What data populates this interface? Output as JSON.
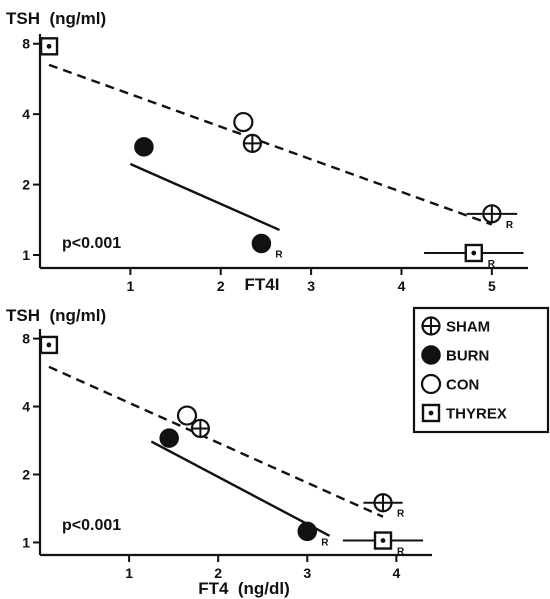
{
  "chart_data": [
    {
      "type": "scatter",
      "ylabel": "TSH  (ng/ml)",
      "xlabel": "FT4I",
      "annotation": "p<0.001",
      "xlim": [
        0,
        5.4
      ],
      "ylim": [
        0.88,
        8.3
      ],
      "y_scale": "log",
      "xticks": [
        1,
        2,
        3,
        4,
        5
      ],
      "yticks": [
        1,
        2,
        4,
        8
      ],
      "series": [
        {
          "name": "SHAM",
          "marker": "circle-cross",
          "points": [
            {
              "x": 2.35,
              "y": 3.0
            },
            {
              "x": 5.0,
              "y": 1.5,
              "xerr": 0.28,
              "r": true
            }
          ]
        },
        {
          "name": "BURN",
          "marker": "filled-circle",
          "points": [
            {
              "x": 1.15,
              "y": 2.9
            },
            {
              "x": 2.45,
              "y": 1.12,
              "r": true
            }
          ]
        },
        {
          "name": "CON",
          "marker": "open-circle",
          "points": [
            {
              "x": 2.25,
              "y": 3.7
            }
          ]
        },
        {
          "name": "THYREX",
          "marker": "dotted-square",
          "points": [
            {
              "x": 0.1,
              "y": 7.8
            },
            {
              "x": 4.8,
              "y": 1.02,
              "xerr": 0.55,
              "r": true
            }
          ]
        }
      ],
      "fit_lines": [
        {
          "style": "dashed",
          "from": [
            0.1,
            6.5
          ],
          "to": [
            5.0,
            1.35
          ]
        },
        {
          "style": "solid",
          "from": [
            1.0,
            2.45
          ],
          "to": [
            2.65,
            1.28
          ]
        }
      ]
    },
    {
      "type": "scatter",
      "ylabel": "TSH  (ng/ml)",
      "xlabel": "FT4  (ng/dl)",
      "annotation": "p<0.001",
      "xlim": [
        0,
        4.4
      ],
      "ylim": [
        0.88,
        8.3
      ],
      "y_scale": "log",
      "xticks": [
        1,
        2,
        3,
        4
      ],
      "yticks": [
        1,
        2,
        4,
        8
      ],
      "series": [
        {
          "name": "SHAM",
          "marker": "circle-cross",
          "points": [
            {
              "x": 1.8,
              "y": 3.2
            },
            {
              "x": 3.85,
              "y": 1.5,
              "xerr": 0.22,
              "r": true
            }
          ]
        },
        {
          "name": "BURN",
          "marker": "filled-circle",
          "points": [
            {
              "x": 1.45,
              "y": 2.9
            },
            {
              "x": 3.0,
              "y": 1.12,
              "r": true
            }
          ]
        },
        {
          "name": "CON",
          "marker": "open-circle",
          "points": [
            {
              "x": 1.65,
              "y": 3.65
            }
          ]
        },
        {
          "name": "THYREX",
          "marker": "dotted-square",
          "points": [
            {
              "x": 0.1,
              "y": 7.5
            },
            {
              "x": 3.85,
              "y": 1.02,
              "xerr": 0.45,
              "r": true
            }
          ]
        }
      ],
      "fit_lines": [
        {
          "style": "dashed",
          "from": [
            0.1,
            6.0
          ],
          "to": [
            3.85,
            1.3
          ]
        },
        {
          "style": "solid",
          "from": [
            1.25,
            2.8
          ],
          "to": [
            3.25,
            1.07
          ]
        }
      ]
    }
  ],
  "legend": {
    "placement": "right",
    "items": [
      {
        "label": "SHAM",
        "marker": "circle-cross"
      },
      {
        "label": "BURN",
        "marker": "filled-circle"
      },
      {
        "label": "CON",
        "marker": "open-circle"
      },
      {
        "label": "THYREX",
        "marker": "dotted-square"
      }
    ]
  }
}
